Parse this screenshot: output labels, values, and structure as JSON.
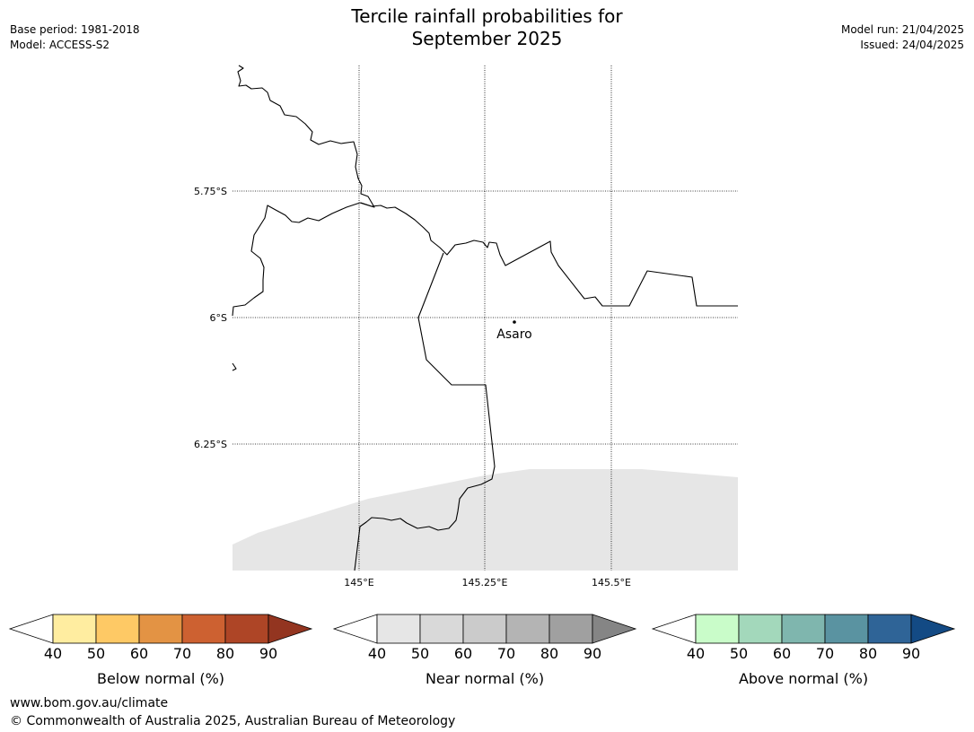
{
  "header": {
    "title_line1": "Tercile rainfall probabilities for",
    "title_line2": "September 2025",
    "base_period": "Base period: 1981-2018",
    "model": "Model: ACCESS-S2",
    "model_run": "Model run: 21/04/2025",
    "issued": "Issued: 24/04/2025"
  },
  "map": {
    "land_color": "#ffffff",
    "no_data_color": "#e6e6e6",
    "border_color": "#000000",
    "lat_labels": [
      "5.75°S",
      "6°S",
      "6.25°S"
    ],
    "lon_labels": [
      "145°E",
      "145.25°E",
      "145.5°E"
    ],
    "place": {
      "name": "Asaro",
      "lon": 145.29,
      "lat": -6.01
    }
  },
  "colorbars": [
    {
      "label": "Below normal (%)",
      "ticks": [
        "40",
        "50",
        "60",
        "70",
        "80",
        "90"
      ],
      "colors": [
        "#ffeda0",
        "#fec965",
        "#e39344",
        "#cd6131",
        "#ae4526",
        "#933520"
      ]
    },
    {
      "label": "Near normal (%)",
      "ticks": [
        "40",
        "50",
        "60",
        "70",
        "80",
        "90"
      ],
      "colors": [
        "#e6e6e6",
        "#d9d9d9",
        "#cbcbcb",
        "#b4b4b4",
        "#a0a0a0",
        "#858585"
      ]
    },
    {
      "label": "Above normal (%)",
      "ticks": [
        "40",
        "50",
        "60",
        "70",
        "80",
        "90"
      ],
      "colors": [
        "#c9fcc9",
        "#a3d8bb",
        "#7fb6ae",
        "#5a93a1",
        "#2f6497",
        "#134a84"
      ]
    }
  ],
  "footer": {
    "url": "www.bom.gov.au/climate",
    "copyright": "© Commonwealth of Australia 2025, Australian Bureau of Meteorology"
  }
}
